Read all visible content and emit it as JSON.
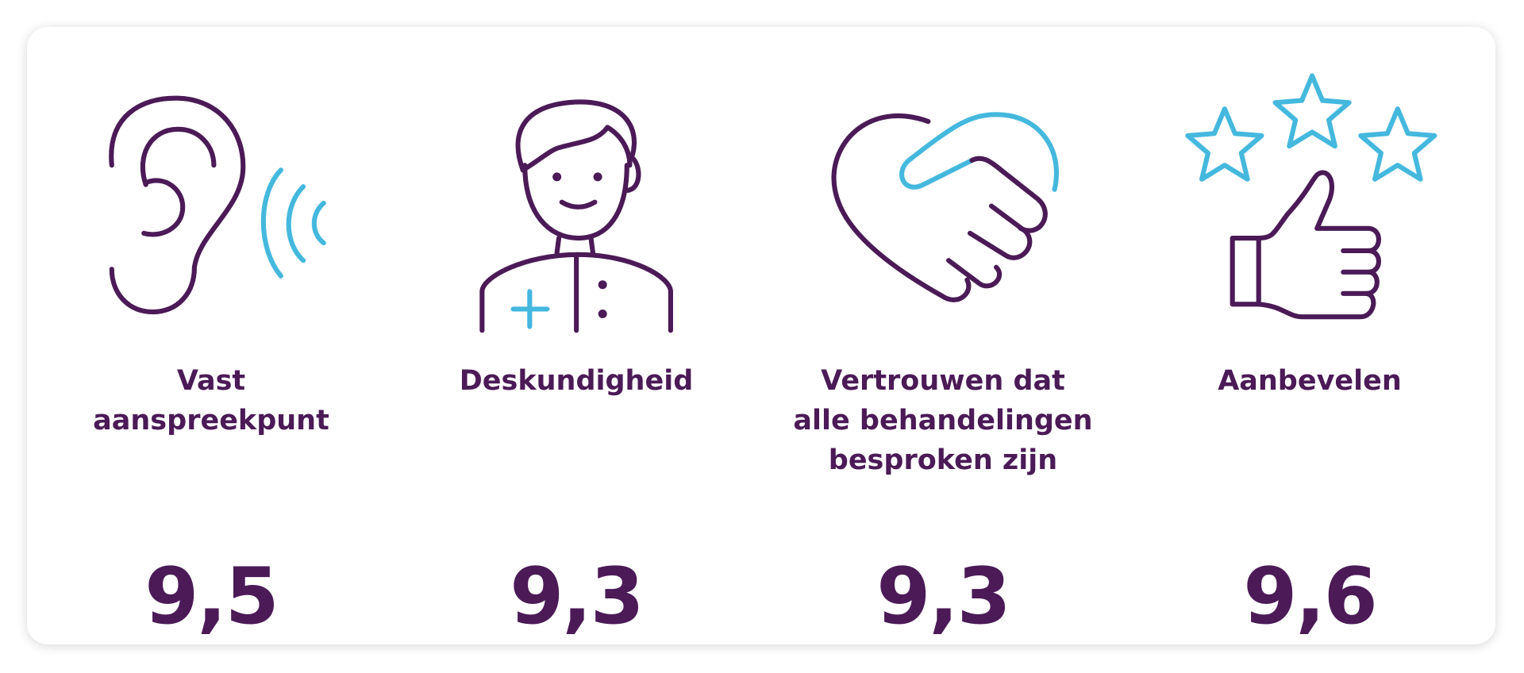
{
  "items": [
    {
      "label_lines": [
        "Vast",
        "aanspreekpunt"
      ],
      "score": "9,5"
    },
    {
      "label_lines": [
        "Deskundigheid"
      ],
      "score": "9,3"
    },
    {
      "label_lines": [
        "Vertrouwen dat",
        "alle behandelingen",
        "besproken zijn"
      ],
      "score": "9,3"
    },
    {
      "label_lines": [
        "Aanbevelen"
      ],
      "score": "9,6"
    }
  ]
}
